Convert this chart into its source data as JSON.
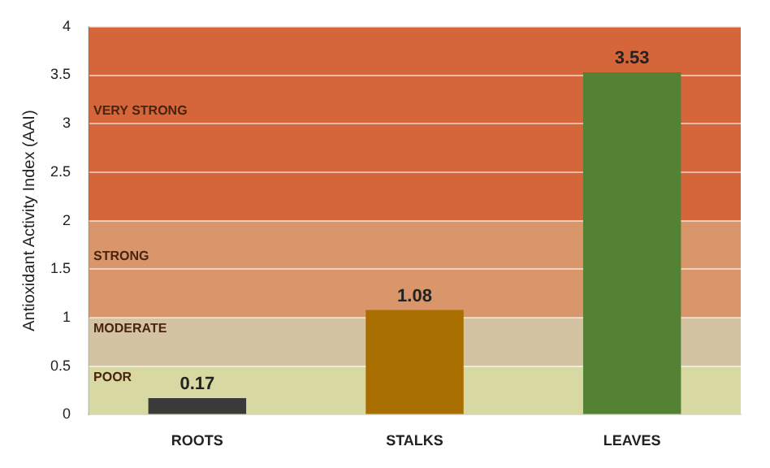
{
  "chart_data": {
    "type": "bar",
    "ylabel": "Antioxidant Activity Index (AAI)",
    "categories": [
      "ROOTS",
      "STALKS",
      "LEAVES"
    ],
    "values": [
      0.17,
      1.08,
      3.53
    ],
    "colors": [
      "#3a3a3a",
      "#a86f00",
      "#548235"
    ],
    "data_labels": true,
    "ylim": [
      0,
      4
    ],
    "yticks": [
      0,
      0.5,
      1,
      1.5,
      2,
      2.5,
      3,
      3.5,
      4
    ],
    "grid": "y",
    "legend": false,
    "bands": [
      {
        "axis": "y",
        "from": 0,
        "to": 0.5,
        "label": "POOR",
        "color": "#d8d8a2"
      },
      {
        "axis": "y",
        "from": 0.5,
        "to": 1,
        "label": "MODERATE",
        "color": "#d4c3a2"
      },
      {
        "axis": "y",
        "from": 1,
        "to": 2,
        "label": "STRONG",
        "color": "#d9966a"
      },
      {
        "axis": "y",
        "from": 2,
        "to": 4,
        "label": "VERY STRONG",
        "color": "#d4663a"
      }
    ]
  }
}
